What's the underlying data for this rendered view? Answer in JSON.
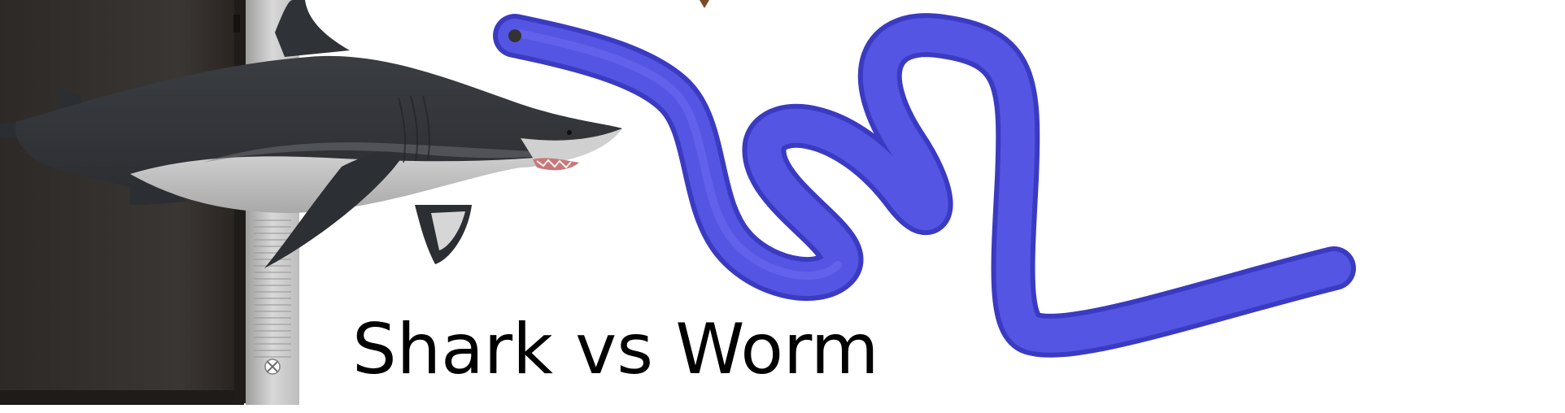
{
  "slide": {
    "title": "Shark vs Worm"
  },
  "images": {
    "console": "game-console-image",
    "shark": "shark-image",
    "worm": "worm-image"
  },
  "colors": {
    "background": "#ffffff",
    "title_text": "#000000",
    "worm_fill": "#4f4fe0",
    "console_body": "#2e2b29",
    "console_side": "#c9c9c9"
  }
}
